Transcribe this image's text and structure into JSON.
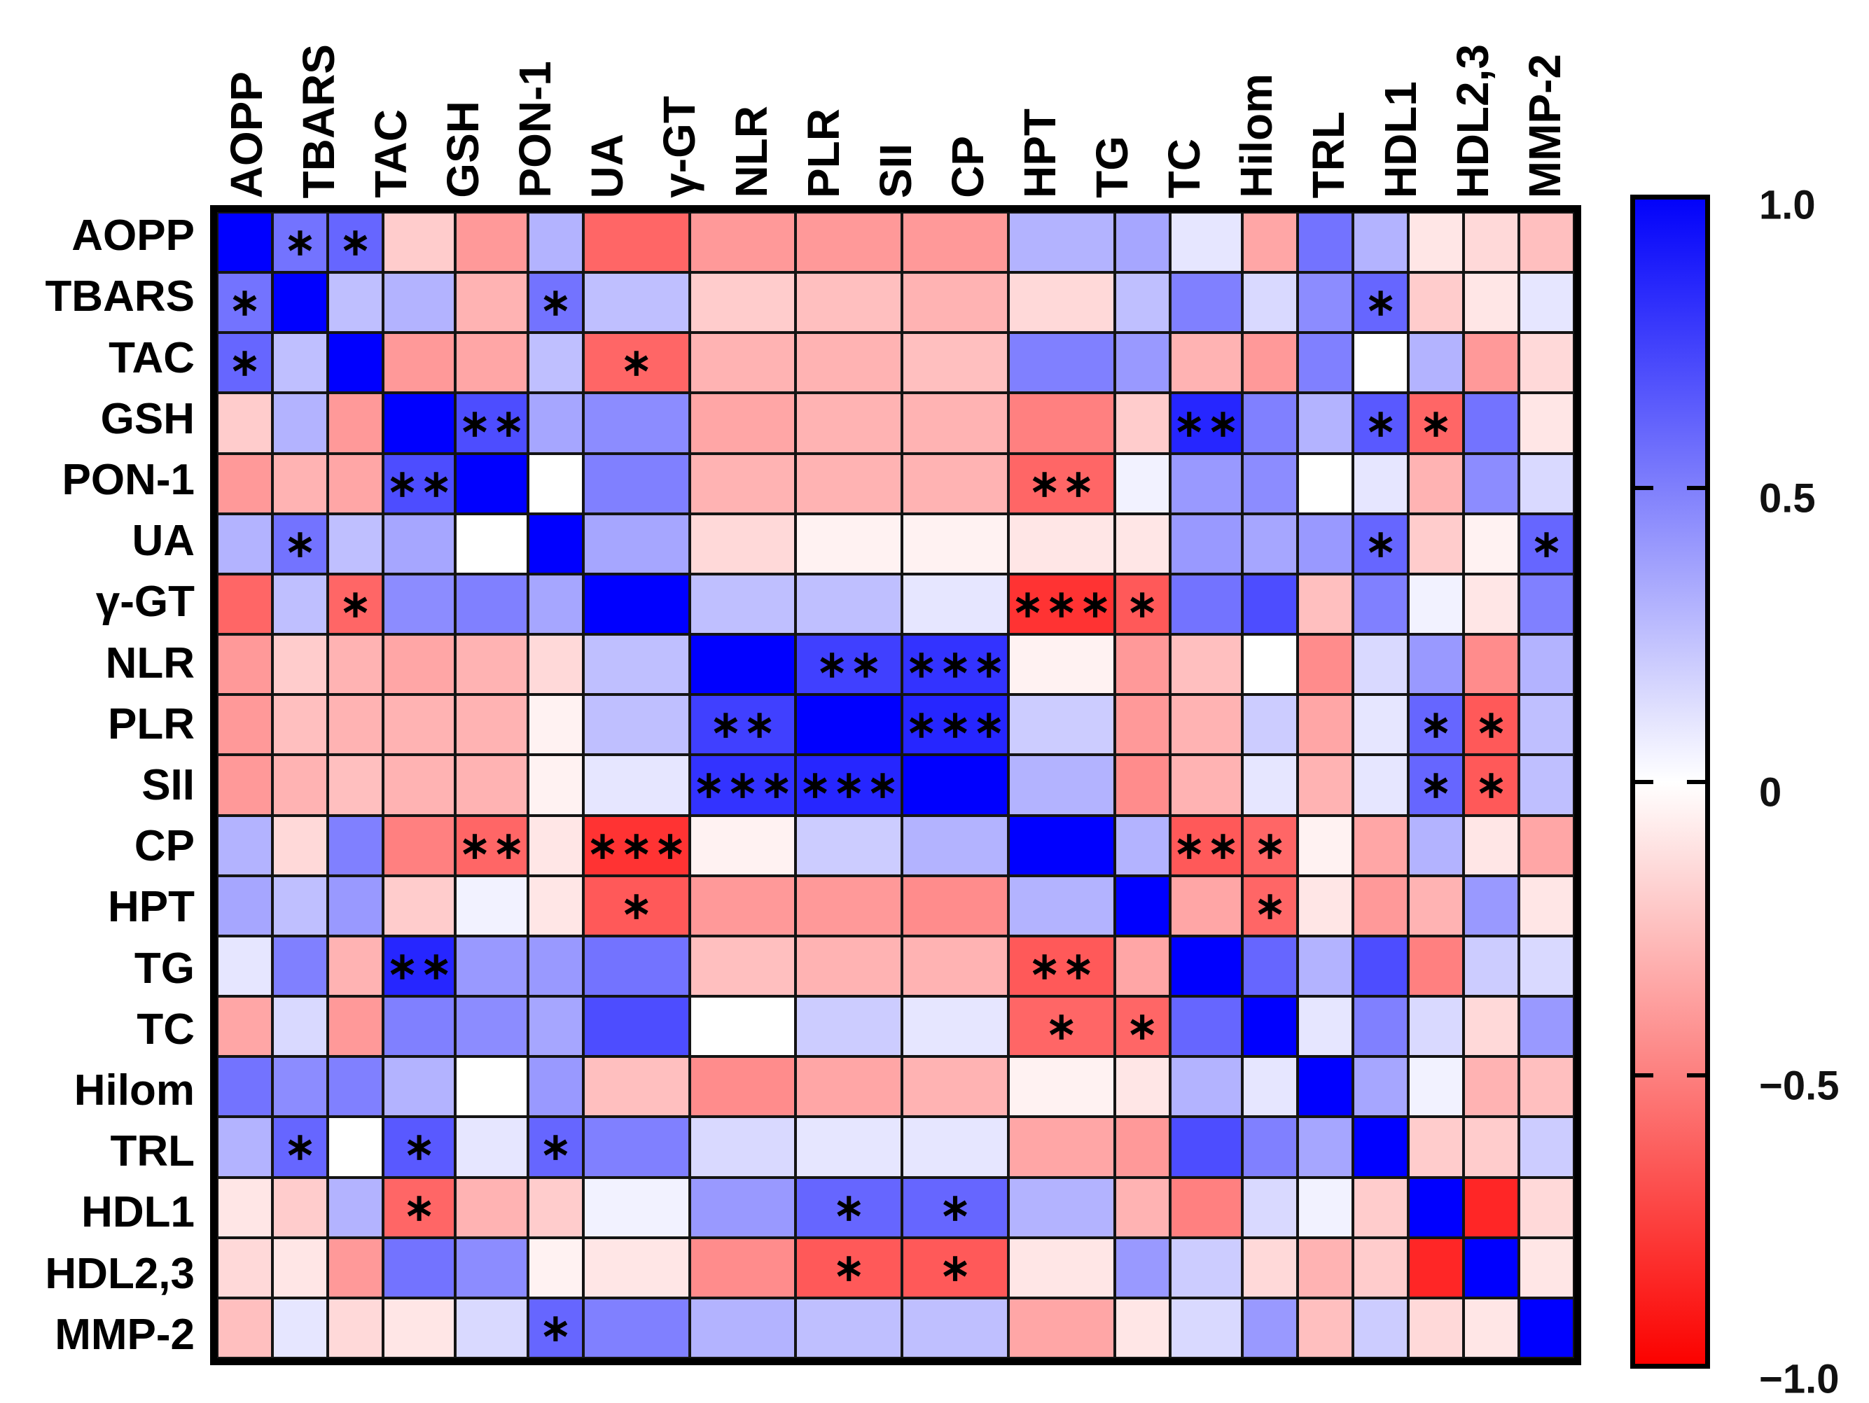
{
  "chart_data": {
    "type": "heatmap",
    "title": "",
    "labels": [
      "AOPP",
      "TBARS",
      "TAC",
      "GSH",
      "PON-1",
      "UA",
      "γ-GT",
      "NLR",
      "PLR",
      "SII",
      "CP",
      "HPT",
      "TG",
      "TC",
      "Hilom",
      "TRL",
      "HDL1",
      "HDL2,3",
      "MMP-2"
    ],
    "value_range": [
      -1,
      1
    ],
    "values": [
      [
        1.0,
        0.55,
        0.6,
        -0.2,
        -0.4,
        0.3,
        -0.6,
        -0.4,
        -0.4,
        -0.4,
        0.3,
        0.35,
        0.1,
        -0.35,
        0.55,
        0.3,
        -0.1,
        -0.15,
        -0.25
      ],
      [
        0.55,
        1.0,
        0.25,
        0.3,
        -0.3,
        0.55,
        0.25,
        -0.2,
        -0.25,
        -0.3,
        -0.15,
        0.25,
        0.5,
        0.15,
        0.45,
        0.6,
        -0.2,
        -0.1,
        0.1
      ],
      [
        0.6,
        0.25,
        1.0,
        -0.4,
        -0.35,
        0.25,
        -0.6,
        -0.3,
        -0.3,
        -0.25,
        0.5,
        0.4,
        -0.3,
        -0.4,
        0.5,
        0.0,
        0.3,
        -0.4,
        -0.15
      ],
      [
        -0.2,
        0.3,
        -0.4,
        1.0,
        0.7,
        0.35,
        0.45,
        -0.35,
        -0.3,
        -0.3,
        -0.5,
        -0.2,
        0.85,
        0.5,
        0.3,
        0.65,
        -0.6,
        0.55,
        -0.1
      ],
      [
        -0.4,
        -0.3,
        -0.35,
        0.7,
        1.0,
        0.0,
        0.5,
        -0.3,
        -0.3,
        -0.3,
        -0.6,
        0.05,
        0.4,
        0.45,
        0.0,
        0.1,
        -0.3,
        0.45,
        0.15
      ],
      [
        0.3,
        0.55,
        0.25,
        0.35,
        0.0,
        1.0,
        0.35,
        -0.15,
        -0.05,
        -0.05,
        -0.1,
        -0.1,
        0.4,
        0.35,
        0.4,
        0.6,
        -0.2,
        -0.05,
        0.6
      ],
      [
        -0.6,
        0.25,
        -0.6,
        0.45,
        0.5,
        0.35,
        1.0,
        0.25,
        0.25,
        0.1,
        -0.8,
        -0.65,
        0.55,
        0.7,
        -0.25,
        0.5,
        0.05,
        -0.1,
        0.5
      ],
      [
        -0.4,
        -0.2,
        -0.3,
        -0.35,
        -0.3,
        -0.15,
        0.25,
        1.0,
        0.75,
        0.8,
        -0.05,
        -0.4,
        -0.25,
        0.0,
        -0.45,
        0.15,
        0.4,
        -0.45,
        0.3
      ],
      [
        -0.4,
        -0.25,
        -0.3,
        -0.3,
        -0.3,
        -0.05,
        0.25,
        0.75,
        1.0,
        0.85,
        0.2,
        -0.4,
        -0.3,
        0.2,
        -0.35,
        0.1,
        0.6,
        -0.65,
        0.25
      ],
      [
        -0.4,
        -0.3,
        -0.25,
        -0.3,
        -0.3,
        -0.05,
        0.1,
        0.8,
        0.85,
        1.0,
        0.3,
        -0.45,
        -0.3,
        0.1,
        -0.3,
        0.1,
        0.6,
        -0.65,
        0.25
      ],
      [
        0.3,
        -0.15,
        0.5,
        -0.5,
        -0.6,
        -0.1,
        -0.8,
        -0.05,
        0.2,
        0.3,
        1.0,
        0.3,
        -0.65,
        -0.6,
        -0.05,
        -0.35,
        0.3,
        -0.1,
        -0.35
      ],
      [
        0.35,
        0.25,
        0.4,
        -0.2,
        0.05,
        -0.1,
        -0.65,
        -0.4,
        -0.4,
        -0.45,
        0.3,
        1.0,
        -0.35,
        -0.6,
        -0.1,
        -0.4,
        -0.3,
        0.4,
        -0.1
      ],
      [
        0.1,
        0.5,
        -0.3,
        0.85,
        0.4,
        0.4,
        0.55,
        -0.25,
        -0.3,
        -0.3,
        -0.65,
        -0.35,
        1.0,
        0.6,
        0.3,
        0.7,
        -0.5,
        0.2,
        0.15
      ],
      [
        -0.35,
        0.15,
        -0.4,
        0.5,
        0.45,
        0.35,
        0.7,
        0.0,
        0.2,
        0.1,
        -0.6,
        -0.6,
        0.6,
        1.0,
        0.1,
        0.5,
        0.15,
        -0.15,
        0.4
      ],
      [
        0.55,
        0.45,
        0.5,
        0.3,
        0.0,
        0.4,
        -0.25,
        -0.45,
        -0.35,
        -0.3,
        -0.05,
        -0.1,
        0.3,
        0.1,
        1.0,
        0.35,
        0.05,
        -0.3,
        -0.25
      ],
      [
        0.3,
        0.6,
        0.0,
        0.65,
        0.1,
        0.6,
        0.5,
        0.15,
        0.1,
        0.1,
        -0.35,
        -0.4,
        0.7,
        0.5,
        0.35,
        1.0,
        -0.2,
        -0.2,
        0.2
      ],
      [
        -0.1,
        -0.2,
        0.3,
        -0.6,
        -0.3,
        -0.2,
        0.05,
        0.4,
        0.6,
        0.6,
        0.3,
        -0.3,
        -0.5,
        0.15,
        0.05,
        -0.2,
        1.0,
        -0.85,
        -0.15
      ],
      [
        -0.15,
        -0.1,
        -0.4,
        0.55,
        0.45,
        -0.05,
        -0.1,
        -0.45,
        -0.65,
        -0.65,
        -0.1,
        0.4,
        0.2,
        -0.15,
        -0.3,
        -0.2,
        -0.85,
        1.0,
        -0.1
      ],
      [
        -0.25,
        0.1,
        -0.15,
        -0.1,
        0.15,
        0.6,
        0.5,
        0.3,
        0.25,
        0.25,
        -0.35,
        -0.1,
        0.15,
        0.4,
        -0.25,
        0.2,
        -0.15,
        -0.1,
        1.0
      ]
    ],
    "significance": [
      [
        "",
        "*",
        "*",
        "",
        "",
        "",
        "",
        "",
        "",
        "",
        "",
        "",
        "",
        "",
        "",
        "",
        "",
        "",
        ""
      ],
      [
        "*",
        "",
        "",
        "",
        "",
        "*",
        "",
        "",
        "",
        "",
        "",
        "",
        "",
        "",
        "",
        "*",
        "",
        "",
        ""
      ],
      [
        "*",
        "",
        "",
        "",
        "",
        "",
        "*",
        "",
        "",
        "",
        "",
        "",
        "",
        "",
        "",
        "",
        "",
        "",
        ""
      ],
      [
        "",
        "",
        "",
        "",
        "**",
        "",
        "",
        "",
        "",
        "",
        "",
        "",
        "**",
        "",
        "",
        "*",
        "*",
        "",
        ""
      ],
      [
        "",
        "",
        "",
        "**",
        "",
        "",
        "",
        "",
        "",
        "",
        "**",
        "",
        "",
        "",
        "",
        "",
        "",
        "",
        ""
      ],
      [
        "",
        "*",
        "",
        "",
        "",
        "",
        "",
        "",
        "",
        "",
        "",
        "",
        "",
        "",
        "",
        "*",
        "",
        "",
        "*"
      ],
      [
        "",
        "",
        "*",
        "",
        "",
        "",
        "",
        "",
        "",
        "",
        "***",
        "*",
        "",
        "",
        "",
        "",
        "",
        "",
        ""
      ],
      [
        "",
        "",
        "",
        "",
        "",
        "",
        "",
        "",
        "**",
        "***",
        "",
        "",
        "",
        "",
        "",
        "",
        "",
        "",
        ""
      ],
      [
        "",
        "",
        "",
        "",
        "",
        "",
        "",
        "**",
        "",
        "***",
        "",
        "",
        "",
        "",
        "",
        "",
        "*",
        "*",
        ""
      ],
      [
        "",
        "",
        "",
        "",
        "",
        "",
        "",
        "***",
        "***",
        "",
        "",
        "",
        "",
        "",
        "",
        "",
        "*",
        "*",
        ""
      ],
      [
        "",
        "",
        "",
        "",
        "**",
        "",
        "***",
        "",
        "",
        "",
        "",
        "",
        "**",
        "*",
        "",
        "",
        "",
        "",
        ""
      ],
      [
        "",
        "",
        "",
        "",
        "",
        "",
        "*",
        "",
        "",
        "",
        "",
        "",
        "",
        "*",
        "",
        "",
        "",
        "",
        ""
      ],
      [
        "",
        "",
        "",
        "**",
        "",
        "",
        "",
        "",
        "",
        "",
        "**",
        "",
        "",
        "",
        "",
        "",
        "",
        "",
        ""
      ],
      [
        "",
        "",
        "",
        "",
        "",
        "",
        "",
        "",
        "",
        "",
        "*",
        "*",
        "",
        "",
        "",
        "",
        "",
        "",
        ""
      ],
      [
        "",
        "",
        "",
        "",
        "",
        "",
        "",
        "",
        "",
        "",
        "",
        "",
        "",
        "",
        "",
        "",
        "",
        "",
        ""
      ],
      [
        "",
        "*",
        "",
        "*",
        "",
        "*",
        "",
        "",
        "",
        "",
        "",
        "",
        "",
        "",
        "",
        "",
        "",
        "",
        ""
      ],
      [
        "",
        "",
        "",
        "*",
        "",
        "",
        "",
        "",
        "*",
        "*",
        "",
        "",
        "",
        "",
        "",
        "",
        "",
        "",
        ""
      ],
      [
        "",
        "",
        "",
        "",
        "",
        "",
        "",
        "",
        "*",
        "*",
        "",
        "",
        "",
        "",
        "",
        "",
        "",
        "",
        ""
      ],
      [
        "",
        "",
        "",
        "",
        "",
        "*",
        "",
        "",
        "",
        "",
        "",
        "",
        "",
        "",
        "",
        "",
        "",
        "",
        ""
      ]
    ],
    "colormap": {
      "positive_end": "#0000ff",
      "zero": "#ffffff",
      "negative_end": "#ff0000"
    },
    "legend_position": "right",
    "grid": true,
    "colorbar": {
      "ticks": [
        {
          "label": "1.0",
          "value": 1.0
        },
        {
          "label": "0.5",
          "value": 0.5
        },
        {
          "label": "0",
          "value": 0.0
        },
        {
          "label": "−0.5",
          "value": -0.5
        },
        {
          "label": "−1.0",
          "value": -1.0
        }
      ]
    }
  }
}
